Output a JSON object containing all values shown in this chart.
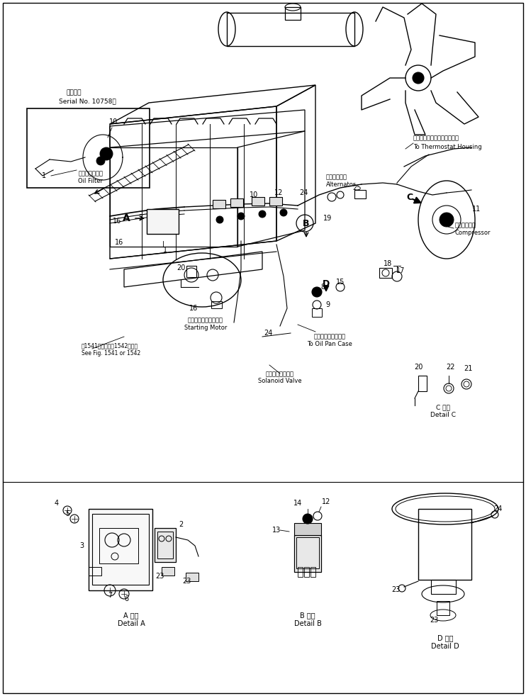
{
  "bg_color": "#ffffff",
  "line_color": "#000000",
  "page_width": 7.42,
  "page_height": 9.82,
  "dpi": 100,
  "labels": {
    "serial_note_ja": "適用号機",
    "serial_note_en": "Serial No. 10758～",
    "oil_filter_ja": "オイルフィルタ",
    "oil_filter_en": "Oil Filter",
    "thermostat_ja": "サーモスタットハウジングへ",
    "thermostat_en": "To Thermostat Housing",
    "alternator_ja": "オルタネータ",
    "alternator_en": "Alternator",
    "compressor_ja": "コンプレッサ",
    "compressor_en": "Compressor",
    "starting_motor_ja": "スターティングモータ",
    "starting_motor_en": "Starting Motor",
    "oil_pan_ja": "オイルパンケースへ",
    "oil_pan_en": "To Oil Pan Case",
    "solenoid_ja": "ソレノイドバルブ",
    "solenoid_en": "Solanoid Valve",
    "see_fig_ja": "第1541図または第1542図参照",
    "see_fig_en": "See Fig. 1541 or 1542",
    "detail_a_ja": "A 詳細",
    "detail_a_en": "Detail A",
    "detail_b_ja": "B 詳細",
    "detail_b_en": "Detail B",
    "detail_c_ja": "C 詳細",
    "detail_c_en": "Detail C",
    "detail_d_ja": "D 詳細",
    "detail_d_en": "Detail D"
  }
}
